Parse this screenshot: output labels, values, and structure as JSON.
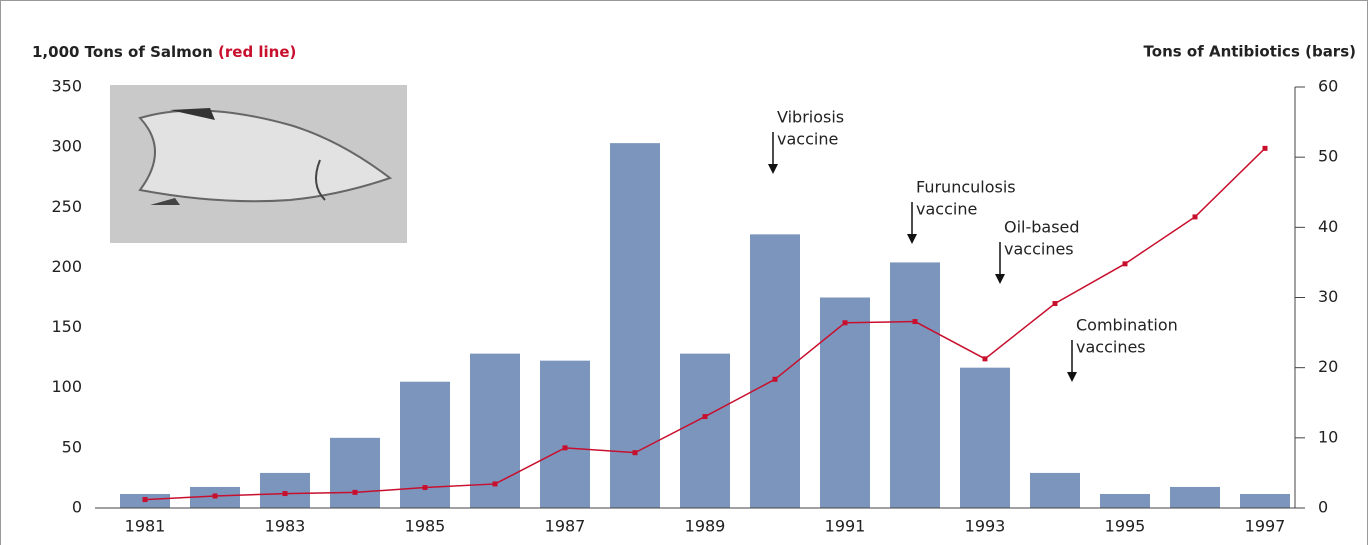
{
  "chart_data": {
    "type": "bar-line",
    "y_title": "1,000 Tons of Salmon",
    "y_title_note": "(red line)",
    "y2_title": "Tons of Antibiotics (bars)",
    "categories": [
      "1981",
      null,
      "1983",
      null,
      "1985",
      null,
      "1987",
      null,
      "1989",
      null,
      "1991",
      null,
      "1993",
      null,
      "1995",
      null,
      "1997"
    ],
    "series": [
      {
        "type": "bar",
        "axis": "y2",
        "color": "#7b95bd",
        "values": [
          2,
          3,
          5,
          10,
          18,
          22,
          21,
          52,
          22,
          39,
          30,
          35,
          20,
          5,
          2,
          3,
          2
        ]
      },
      {
        "type": "line",
        "color": "#c8102e",
        "values": [
          7,
          10,
          12,
          13,
          17,
          20,
          50,
          46,
          76,
          107,
          154,
          155,
          124,
          170,
          203,
          242,
          299
        ]
      }
    ],
    "ylim": [
      0,
      350
    ],
    "yticks": [
      0,
      50,
      100,
      150,
      200,
      250,
      300,
      350
    ],
    "y2lim": [
      0,
      60
    ],
    "y2ticks": [
      0,
      10,
      20,
      30,
      40,
      50,
      60
    ],
    "annotations": [
      {
        "lines": [
          "Vibriosis",
          "vaccine"
        ]
      },
      {
        "lines": [
          "Furunculosis",
          "vaccine"
        ]
      },
      {
        "lines": [
          "Oil-based",
          "vaccines"
        ]
      },
      {
        "lines": [
          "Combination",
          "vaccines"
        ]
      }
    ]
  }
}
